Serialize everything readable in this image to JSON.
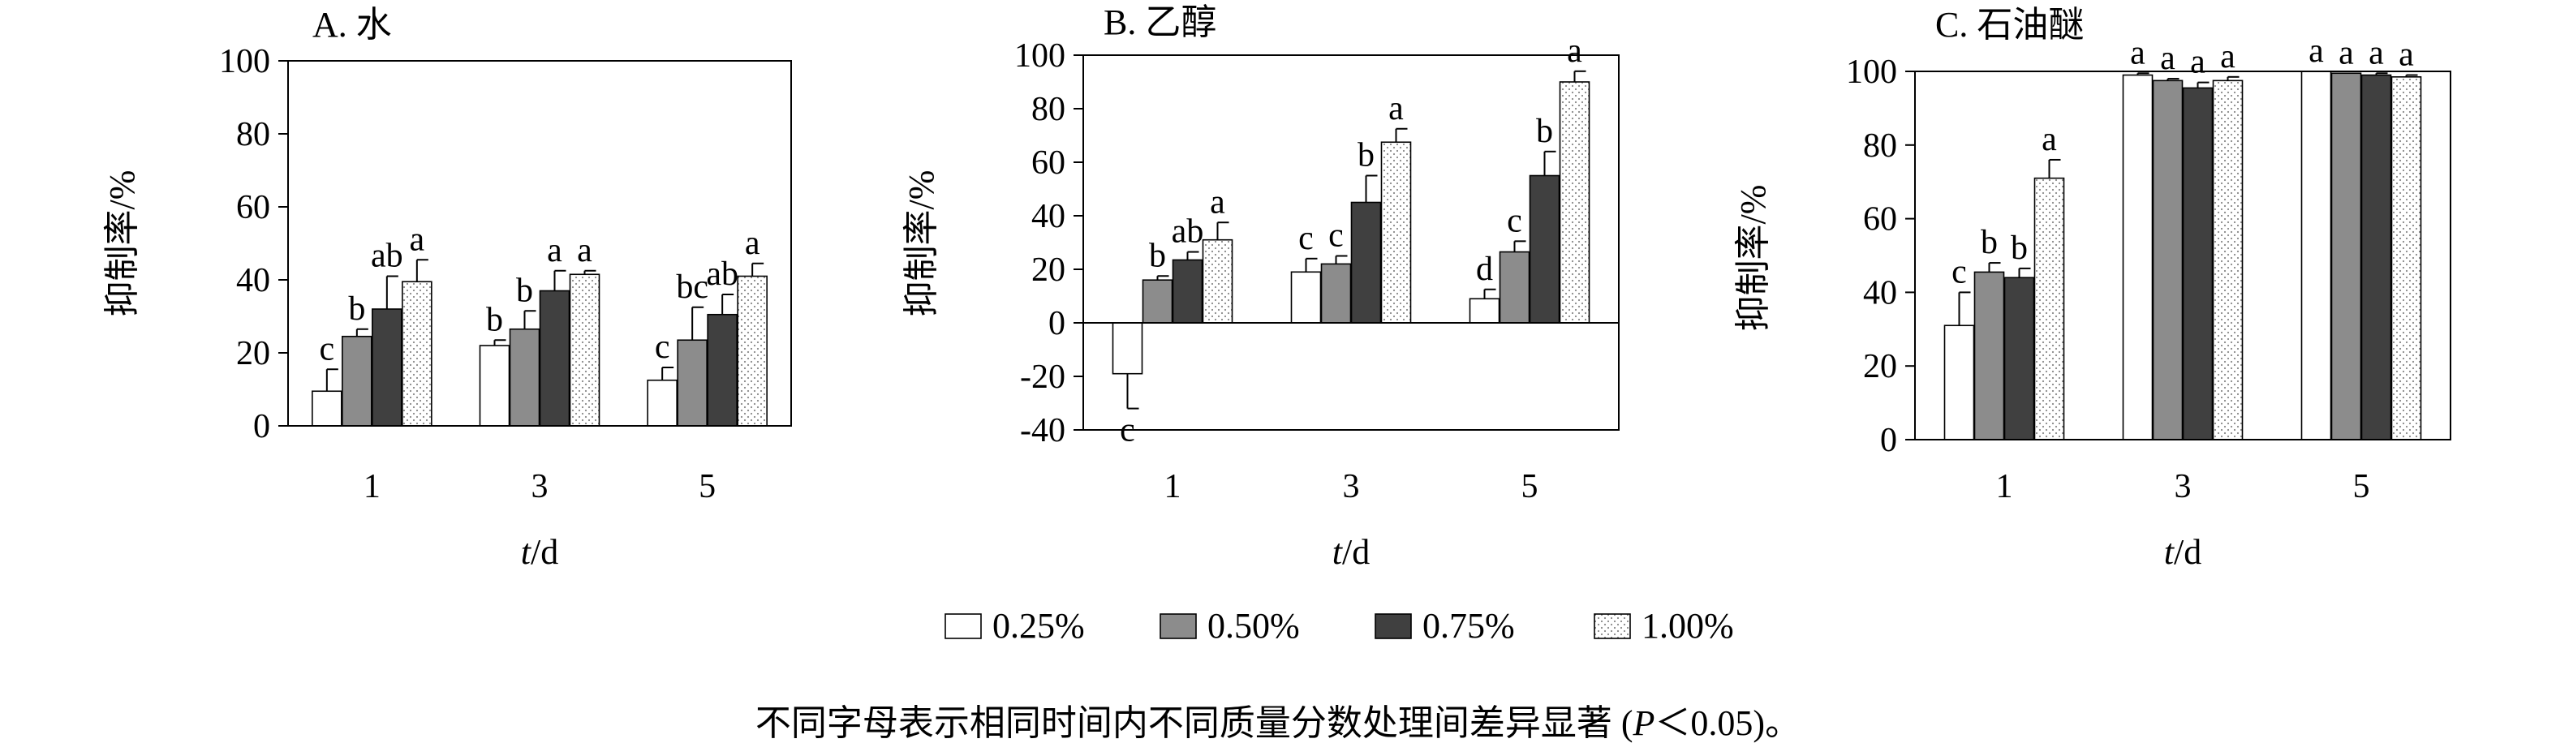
{
  "chart_data": [
    {
      "type": "bar",
      "title": "A. 水",
      "xlabel_var": "t",
      "xlabel_unit": "/d",
      "ylabel": "抑制率/%",
      "ylim": [
        0,
        100
      ],
      "yticks": [
        0,
        20,
        40,
        60,
        80,
        100
      ],
      "categories": [
        "1",
        "3",
        "5"
      ],
      "series": [
        {
          "name": "0.25%",
          "values": [
            9.5,
            22,
            12.5
          ],
          "errors": [
            6,
            1.5,
            3.5
          ],
          "letters": [
            "c",
            "b",
            "c"
          ]
        },
        {
          "name": "0.50%",
          "values": [
            24.5,
            26.5,
            23.5
          ],
          "errors": [
            2,
            5,
            9
          ],
          "letters": [
            "b",
            "b",
            "bc"
          ]
        },
        {
          "name": "0.75%",
          "values": [
            32,
            37,
            30.5
          ],
          "errors": [
            9,
            5.5,
            5.5
          ],
          "letters": [
            "ab",
            "a",
            "ab"
          ]
        },
        {
          "name": "1.00%",
          "values": [
            39.5,
            41.5,
            41
          ],
          "errors": [
            6,
            1,
            3.5
          ],
          "letters": [
            "a",
            "a",
            "a"
          ]
        }
      ]
    },
    {
      "type": "bar",
      "title": "B. 乙醇",
      "xlabel_var": "t",
      "xlabel_unit": "/d",
      "ylabel": "抑制率/%",
      "ylim": [
        -40,
        100
      ],
      "yticks": [
        -40,
        -20,
        0,
        20,
        40,
        60,
        80,
        100
      ],
      "categories": [
        "1",
        "3",
        "5"
      ],
      "series": [
        {
          "name": "0.25%",
          "values": [
            -19,
            19,
            9
          ],
          "errors": [
            13,
            5,
            3.5
          ],
          "letters": [
            "c",
            "c",
            "d"
          ]
        },
        {
          "name": "0.50%",
          "values": [
            16,
            22,
            26.5
          ],
          "errors": [
            1.5,
            3,
            4
          ],
          "letters": [
            "b",
            "c",
            "c"
          ]
        },
        {
          "name": "0.75%",
          "values": [
            23.5,
            45,
            55
          ],
          "errors": [
            3,
            10,
            9
          ],
          "letters": [
            "ab",
            "b",
            "b"
          ]
        },
        {
          "name": "1.00%",
          "values": [
            31,
            67.5,
            90
          ],
          "errors": [
            6.5,
            5,
            4
          ],
          "letters": [
            "a",
            "a",
            "a"
          ]
        }
      ]
    },
    {
      "type": "bar",
      "title": "C. 石油醚",
      "xlabel_var": "t",
      "xlabel_unit": "/d",
      "ylabel": "抑制率/%",
      "ylim": [
        0,
        100
      ],
      "yticks": [
        0,
        20,
        40,
        60,
        80,
        100
      ],
      "categories": [
        "1",
        "3",
        "5"
      ],
      "series": [
        {
          "name": "0.25%",
          "values": [
            31,
            99,
            100
          ],
          "errors": [
            9,
            0.5,
            0
          ],
          "letters": [
            "c",
            "a",
            "a"
          ]
        },
        {
          "name": "0.50%",
          "values": [
            45.5,
            97.5,
            99.5
          ],
          "errors": [
            2.5,
            0.5,
            0
          ],
          "letters": [
            "b",
            "a",
            "a"
          ]
        },
        {
          "name": "0.75%",
          "values": [
            44,
            95.5,
            99
          ],
          "errors": [
            2.5,
            1.5,
            0.5
          ],
          "letters": [
            "b",
            "a",
            "a"
          ]
        },
        {
          "name": "1.00%",
          "values": [
            71,
            97.5,
            98.5
          ],
          "errors": [
            5,
            1,
            0.5
          ],
          "letters": [
            "a",
            "a",
            "a"
          ]
        }
      ]
    }
  ],
  "legend": {
    "placement": "bottom-center",
    "items": [
      {
        "label": "0.25%",
        "fill": "white"
      },
      {
        "label": "0.50%",
        "fill": "gray"
      },
      {
        "label": "0.75%",
        "fill": "dark-gray"
      },
      {
        "label": "1.00%",
        "fill": "dotted"
      }
    ]
  },
  "caption": "不同字母表示相同时间内不同质量分数处理间差异显著 (P＜0.05)。",
  "colors": {
    "s0": "#ffffff",
    "s1": "#8c8c8c",
    "s2": "#404040",
    "s3_bg": "#ffffff",
    "s3_dot": "#888888",
    "stroke": "#000000"
  }
}
